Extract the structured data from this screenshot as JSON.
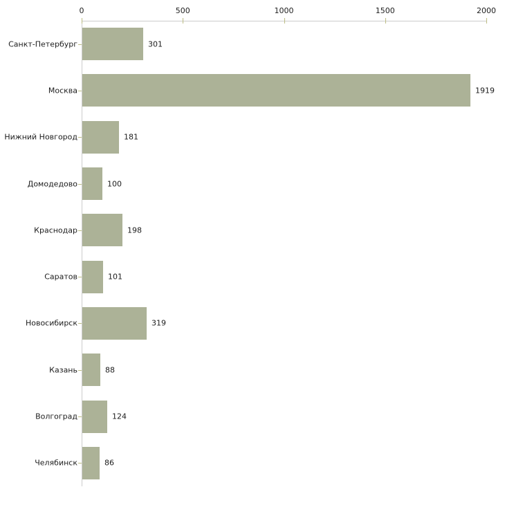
{
  "chart_data": {
    "type": "bar",
    "orientation": "horizontal",
    "title": "",
    "xlabel": "",
    "ylabel": "",
    "categories": [
      "Санкт-Петербург",
      "Москва",
      "Нижний Новгород",
      "Домодедово",
      "Краснодар",
      "Саратов",
      "Новосибирск",
      "Казань",
      "Волгоград",
      "Челябинск"
    ],
    "values": [
      301,
      1919,
      181,
      100,
      198,
      101,
      319,
      88,
      124,
      86
    ],
    "value_labels": [
      "301",
      "1919",
      "181",
      "100",
      "198",
      "101",
      "319",
      "88",
      "124",
      "86"
    ],
    "xlim": [
      0,
      2000
    ],
    "x_ticks": [
      0,
      500,
      1000,
      1500,
      2000
    ],
    "x_tick_labels": [
      "0",
      "500",
      "1000",
      "1500",
      "2000"
    ],
    "axis_position": "top",
    "grid": false,
    "legend": null,
    "colors": {
      "bar_fill": "#acb297",
      "axis_line": "#cccccc",
      "tick_mark": "#bcbc82",
      "label_text": "#1c1c1c",
      "background": "#ffffff"
    }
  }
}
